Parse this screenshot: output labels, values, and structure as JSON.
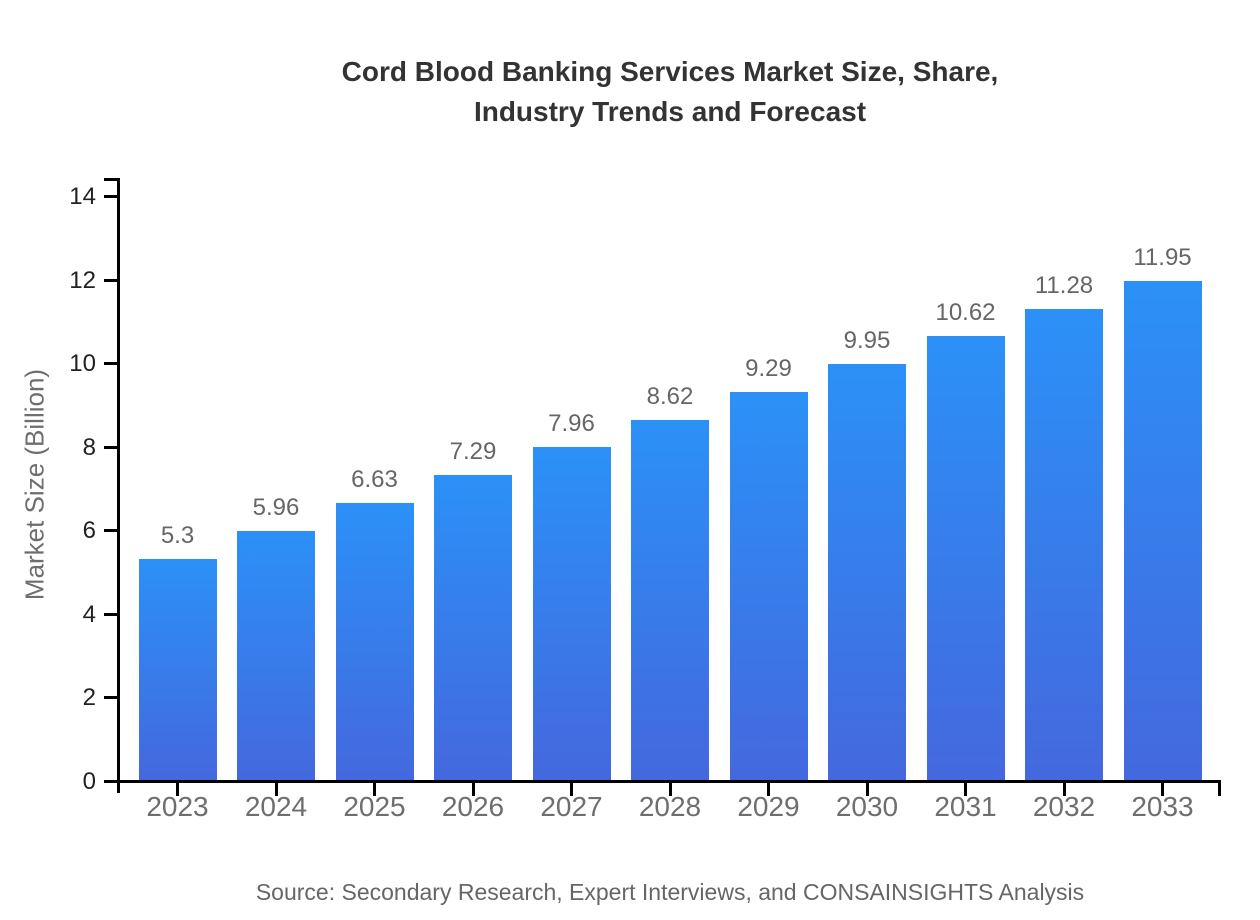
{
  "title": {
    "lines": [
      "Cord Blood Banking Services Market Size, Share,",
      "Industry Trends and Forecast"
    ]
  },
  "source_note": "Source: Secondary Research, Expert Interviews, and CONSAINSIGHTS Analysis",
  "colors": {
    "bar_gradient_top": "#2b91f7",
    "bar_gradient_bottom": "#4468de",
    "axis": "#000000",
    "title_text": "#333333",
    "value_label_text": "#666666",
    "x_tick_text": "#6e6e6e",
    "y_tick_text": "#222222",
    "background": "#ffffff"
  },
  "chart_data": {
    "type": "bar",
    "title": "Cord Blood Banking Services Market Size, Share, Industry Trends and Forecast",
    "categories": [
      "2023",
      "2024",
      "2025",
      "2026",
      "2027",
      "2028",
      "2029",
      "2030",
      "2031",
      "2032",
      "2033"
    ],
    "values": [
      5.3,
      5.96,
      6.63,
      7.29,
      7.96,
      8.62,
      9.29,
      9.95,
      10.62,
      11.28,
      11.95
    ],
    "data_labels": [
      "5.3",
      "5.96",
      "6.63",
      "7.29",
      "7.96",
      "8.62",
      "9.29",
      "9.95",
      "10.62",
      "11.28",
      "11.95"
    ],
    "xlabel": "",
    "ylabel": "Market Size (Billion)",
    "ylim": [
      0,
      14
    ],
    "yticks": [
      0,
      2,
      4,
      6,
      8,
      10,
      12,
      14
    ],
    "grid": false,
    "legend": false
  }
}
